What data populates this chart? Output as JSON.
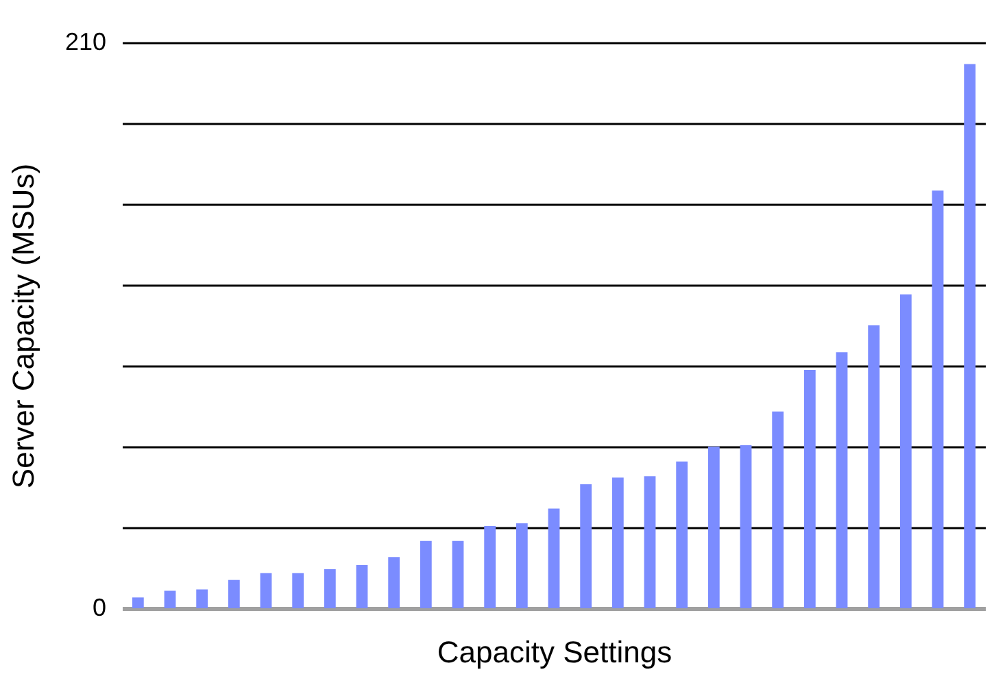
{
  "chart_data": {
    "type": "bar",
    "xlabel": "Capacity Settings",
    "ylabel": "Server Capacity (MSUs)",
    "categories": [
      null,
      null,
      null,
      null,
      null,
      null,
      null,
      null,
      null,
      null,
      null,
      null,
      null,
      null,
      null,
      null,
      null,
      null,
      null,
      null,
      null,
      null,
      null,
      null,
      null,
      null,
      null
    ],
    "values": [
      4,
      6.5,
      7,
      10.5,
      13,
      13,
      14.5,
      16,
      19,
      25,
      25,
      30.5,
      31.5,
      37,
      46,
      48.5,
      49,
      54.5,
      60,
      60.5,
      73,
      88.5,
      95,
      105,
      116.5,
      155,
      202
    ],
    "color": "#7b8cff",
    "ylim": [
      0,
      210
    ],
    "yticks": [
      0,
      {
        "value": 30,
        "label": null
      },
      {
        "value": 60,
        "label": null
      },
      {
        "value": 90,
        "label": null
      },
      {
        "value": 120,
        "label": null
      },
      {
        "value": 150,
        "label": null
      },
      {
        "value": 180,
        "label": null
      },
      210
    ],
    "grid": "y",
    "tick_labels": "y"
  }
}
